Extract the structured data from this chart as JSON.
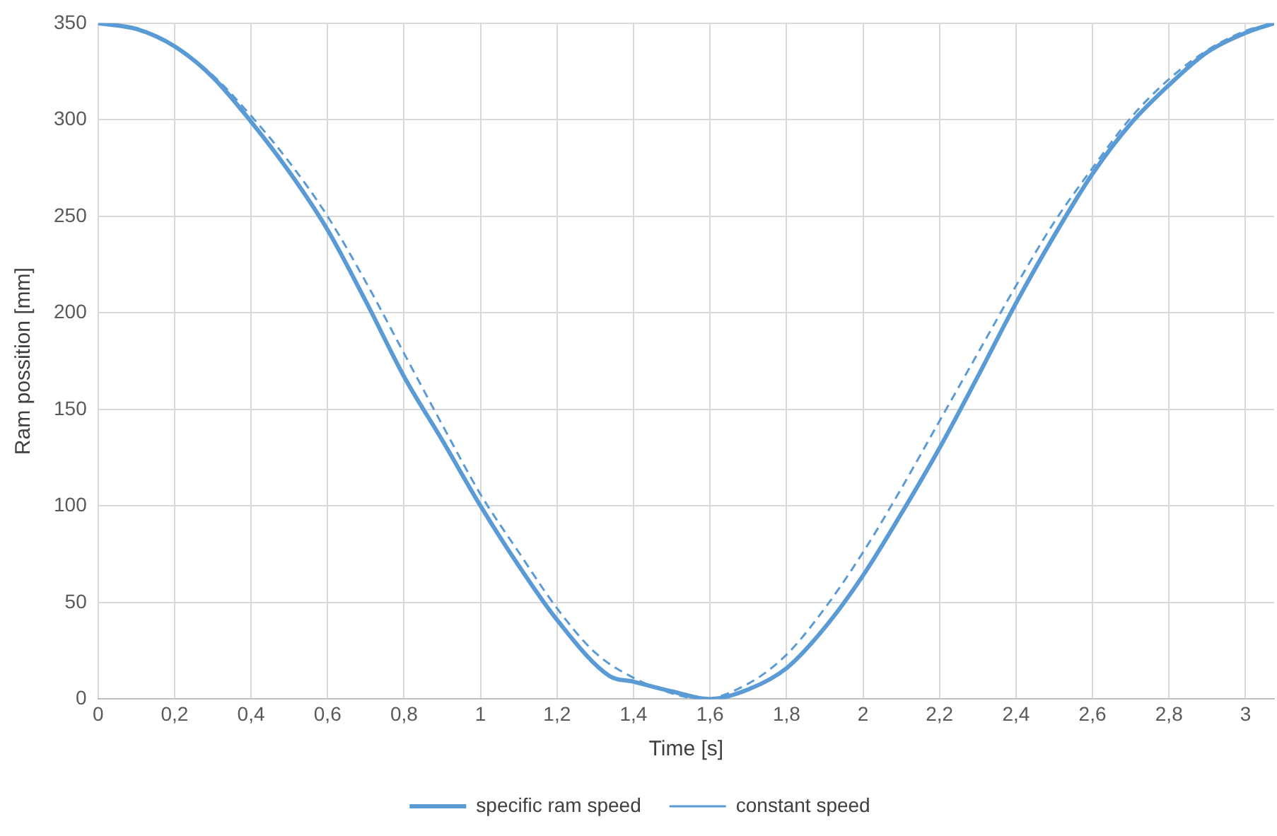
{
  "chart_data": {
    "type": "line",
    "xlabel": "Time [s]",
    "ylabel": "Ram possition [mm]",
    "xlim": [
      0,
      3.075
    ],
    "ylim": [
      0,
      350
    ],
    "xticks": [
      0,
      {
        "value": 0.2,
        "label": "0,2"
      },
      {
        "value": 0.4,
        "label": "0,4"
      },
      {
        "value": 0.6,
        "label": "0,6"
      },
      {
        "value": 0.8,
        "label": "0,8"
      },
      1,
      {
        "value": 1.2,
        "label": "1,2"
      },
      {
        "value": 1.4,
        "label": "1,4"
      },
      {
        "value": 1.6,
        "label": "1,6"
      },
      {
        "value": 1.8,
        "label": "1,8"
      },
      2,
      {
        "value": 2.2,
        "label": "2,2"
      },
      {
        "value": 2.4,
        "label": "2,4"
      },
      {
        "value": 2.6,
        "label": "2,6"
      },
      {
        "value": 2.8,
        "label": "2,8"
      },
      3
    ],
    "yticks": [
      0,
      50,
      100,
      150,
      200,
      250,
      300,
      350
    ],
    "grid": true,
    "legend": "bottom",
    "marker": "none",
    "series": [
      {
        "name": "specific ram speed",
        "color": "#5b9bd5",
        "line_style": "solid",
        "x": [
          0,
          0.1,
          0.2,
          0.3,
          0.4,
          0.5,
          0.6,
          0.7,
          0.8,
          0.9,
          1.0,
          1.1,
          1.2,
          1.337,
          1.4,
          1.5,
          1.6,
          1.7,
          1.8,
          1.9,
          2.0,
          2.1,
          2.2,
          2.3,
          2.4,
          2.5,
          2.6,
          2.7,
          2.8,
          2.9,
          3.0,
          3.075
        ],
        "values": [
          350,
          347,
          338,
          322,
          299,
          273,
          243,
          206,
          167,
          134,
          100,
          69,
          41,
          12,
          9,
          4,
          0,
          5,
          16,
          37,
          64,
          96,
          130,
          167,
          205,
          240,
          272,
          298,
          318,
          335,
          345,
          350
        ]
      },
      {
        "name": "constant speed",
        "color": "#5b9bd5",
        "line_style": "dashed",
        "x": [
          0,
          0.1,
          0.2,
          0.3,
          0.4,
          0.5,
          0.6,
          0.7,
          0.8,
          0.9,
          1.0,
          1.1,
          1.2,
          1.3,
          1.4,
          1.5,
          1.58,
          1.7,
          1.8,
          1.9,
          2.0,
          2.1,
          2.2,
          2.3,
          2.4,
          2.5,
          2.6,
          2.7,
          2.8,
          2.9,
          3.0,
          3.075
        ],
        "values": [
          350,
          347,
          338,
          323,
          302,
          278,
          250,
          216,
          179,
          142,
          106,
          76,
          47,
          24,
          11,
          3,
          0,
          8,
          23,
          47,
          76,
          109,
          144,
          179,
          214,
          247,
          275,
          301,
          321,
          336,
          346,
          350
        ]
      }
    ]
  }
}
